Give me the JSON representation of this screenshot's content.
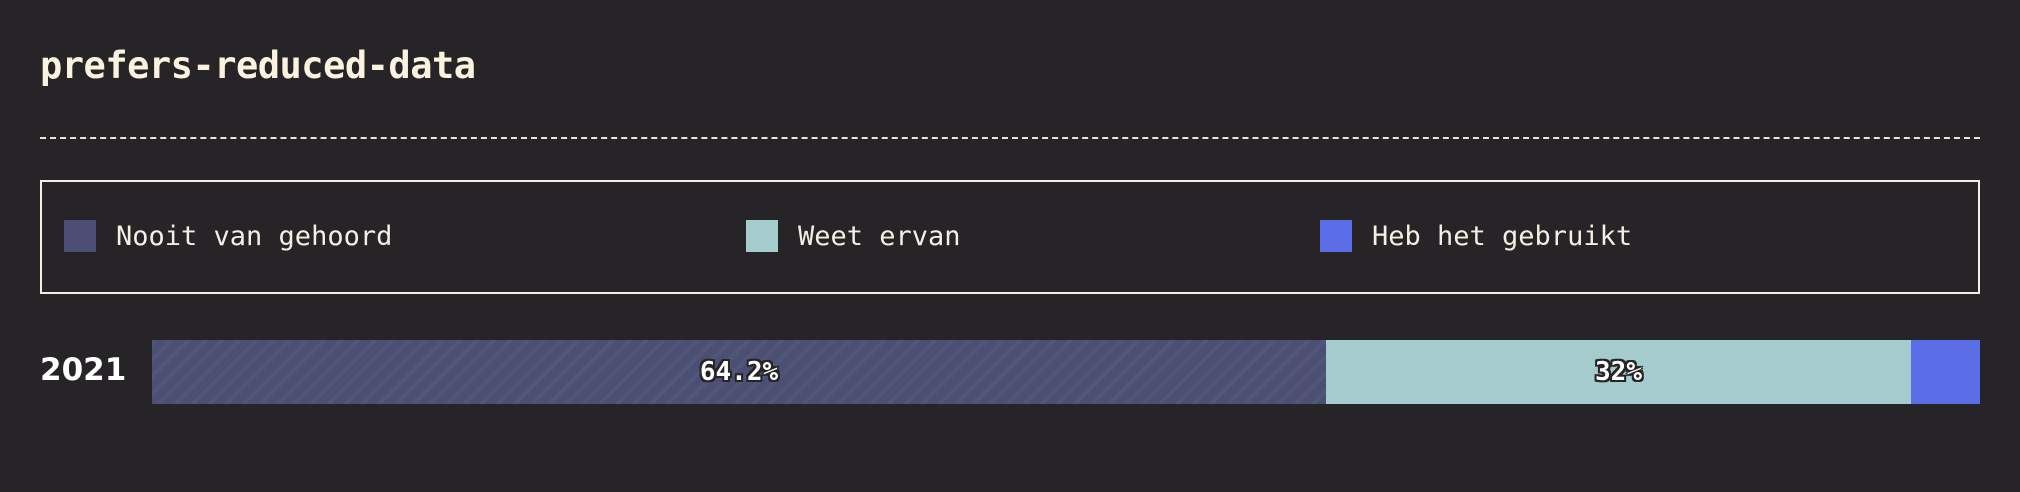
{
  "title": "prefers-reduced-data",
  "legend": [
    {
      "label": "Nooit van gehoord",
      "color": "#4a4f73"
    },
    {
      "label": "Weet ervan",
      "color": "#a5cccd"
    },
    {
      "label": "Heb het gebruikt",
      "color": "#5b6ee8"
    }
  ],
  "chart_data": {
    "type": "bar",
    "orientation": "horizontal",
    "stacked": true,
    "categories": [
      "2021"
    ],
    "series": [
      {
        "name": "Nooit van gehoord",
        "values": [
          64.2
        ],
        "label": "64.2%",
        "color": "#4a4f73"
      },
      {
        "name": "Weet ervan",
        "values": [
          32
        ],
        "label": "32%",
        "color": "#a5cccd"
      },
      {
        "name": "Heb het gebruikt",
        "values": [
          3.8
        ],
        "label": "",
        "color": "#5b6ee8"
      }
    ],
    "title": "prefers-reduced-data",
    "xlim": [
      0,
      100
    ],
    "grid": false,
    "legend_placement": "top"
  }
}
